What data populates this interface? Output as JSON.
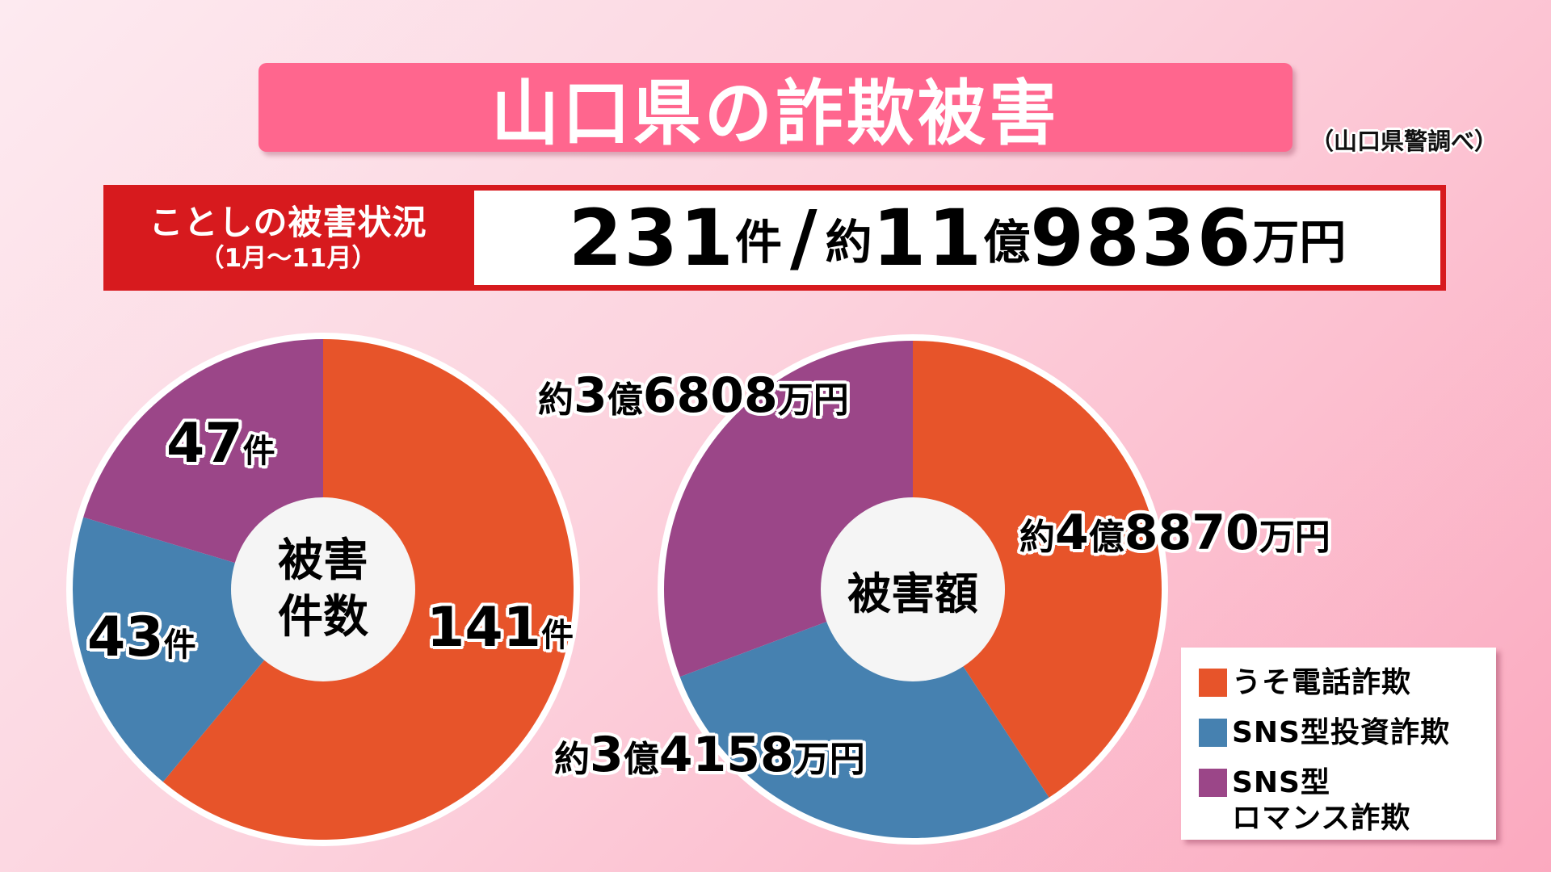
{
  "header": {
    "title": "山口県の詐欺被害",
    "source": "（山口県警調べ）"
  },
  "summary": {
    "label_line1": "ことしの被害状況",
    "label_line2": "（1月～11月）",
    "count_number": "231",
    "count_unit": "件",
    "separator": "/",
    "amount_prefix": "約",
    "amount_oku": "11",
    "amount_oku_unit": "億",
    "amount_man": "9836",
    "amount_man_unit": "万円"
  },
  "colors": {
    "phone_fraud": "#e7542a",
    "sns_investment": "#4681b0",
    "sns_romance": "#9b4688",
    "title_bg": "#ff668e",
    "summary_red": "#d71a1e"
  },
  "left_pie": {
    "center_line1": "被害",
    "center_line2": "件数",
    "labels": [
      {
        "num": "141",
        "unit": "件"
      },
      {
        "num": "43",
        "unit": "件"
      },
      {
        "num": "47",
        "unit": "件"
      }
    ]
  },
  "right_pie": {
    "center": "被害額",
    "labels": [
      {
        "prefix": "約",
        "oku": "4",
        "oku_unit": "億",
        "man": "8870",
        "man_unit": "万円"
      },
      {
        "prefix": "約",
        "oku": "3",
        "oku_unit": "億",
        "man": "4158",
        "man_unit": "万円"
      },
      {
        "prefix": "約",
        "oku": "3",
        "oku_unit": "億",
        "man": "6808",
        "man_unit": "万円"
      }
    ]
  },
  "legend": {
    "items": [
      {
        "label": "うそ電話詐欺"
      },
      {
        "label": "SNS型投資詐欺"
      },
      {
        "label_line1": "SNS型",
        "label_line2": "ロマンス詐欺"
      }
    ]
  },
  "chart_data": [
    {
      "type": "pie",
      "title": "被害件数",
      "categories": [
        "うそ電話詐欺",
        "SNS型投資詐欺",
        "SNS型ロマンス詐欺"
      ],
      "values": [
        141,
        43,
        47
      ],
      "unit": "件",
      "total": 231,
      "colors": [
        "#e7542a",
        "#4681b0",
        "#9b4688"
      ],
      "donut": true,
      "start_angle": "12 o'clock, clockwise"
    },
    {
      "type": "pie",
      "title": "被害額",
      "categories": [
        "うそ電話詐欺",
        "SNS型投資詐欺",
        "SNS型ロマンス詐欺"
      ],
      "values": [
        48870,
        34158,
        36808
      ],
      "unit": "万円",
      "value_labels": [
        "約4億8870万円",
        "約3億4158万円",
        "約3億6808万円"
      ],
      "total": 119836,
      "total_label": "約11億9836万円",
      "colors": [
        "#e7542a",
        "#4681b0",
        "#9b4688"
      ],
      "donut": true,
      "start_angle": "12 o'clock, clockwise",
      "legend_position": "bottom-right"
    }
  ]
}
